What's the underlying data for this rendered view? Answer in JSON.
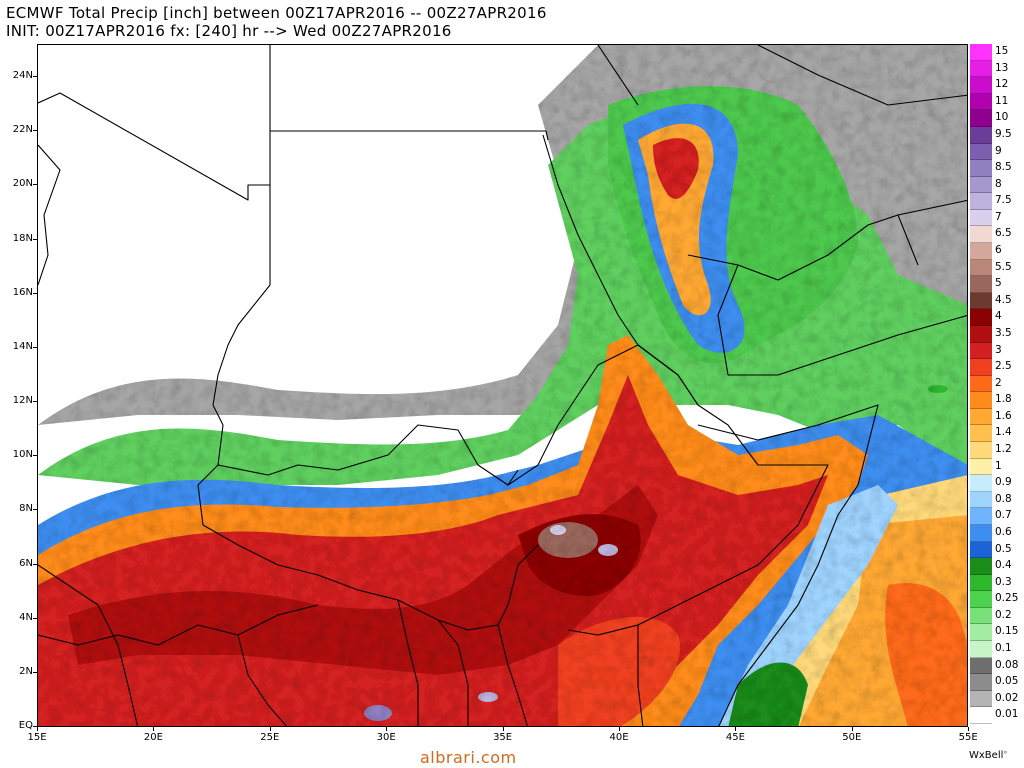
{
  "header": {
    "line1": "ECMWF Total Precip [inch] between 00Z17APR2016 -- 00Z27APR2016",
    "line2": "INIT: 00Z17APR2016 fx: [240] hr --> Wed 00Z27APR2016"
  },
  "map": {
    "lat_labels": [
      "24N",
      "22N",
      "20N",
      "18N",
      "16N",
      "14N",
      "12N",
      "10N",
      "8N",
      "6N",
      "4N",
      "2N",
      "EQ"
    ],
    "lon_labels": [
      "15E",
      "20E",
      "25E",
      "30E",
      "35E",
      "40E",
      "45E",
      "50E",
      "55E"
    ]
  },
  "colorbar": {
    "items": [
      {
        "label": "15",
        "color": "#ff33ff"
      },
      {
        "label": "13",
        "color": "#e61fe6"
      },
      {
        "label": "12",
        "color": "#cc0ccc"
      },
      {
        "label": "11",
        "color": "#b000b0"
      },
      {
        "label": "10",
        "color": "#8f008f"
      },
      {
        "label": "9.5",
        "color": "#6a3d9a"
      },
      {
        "label": "9",
        "color": "#7b5fb0"
      },
      {
        "label": "8.5",
        "color": "#9080c0"
      },
      {
        "label": "8",
        "color": "#a598cf"
      },
      {
        "label": "7.5",
        "color": "#bdb3de"
      },
      {
        "label": "7",
        "color": "#d8d0ec"
      },
      {
        "label": "6.5",
        "color": "#f2d8d0"
      },
      {
        "label": "6",
        "color": "#d4a79a"
      },
      {
        "label": "5.5",
        "color": "#b9877a"
      },
      {
        "label": "5",
        "color": "#9a675c"
      },
      {
        "label": "4.5",
        "color": "#6e3a2e"
      },
      {
        "label": "4",
        "color": "#8b0000"
      },
      {
        "label": "3.5",
        "color": "#b01010"
      },
      {
        "label": "3",
        "color": "#d42020"
      },
      {
        "label": "2.5",
        "color": "#f04020"
      },
      {
        "label": "2",
        "color": "#ff6a1a"
      },
      {
        "label": "1.8",
        "color": "#ff8c1a"
      },
      {
        "label": "1.6",
        "color": "#ffa833"
      },
      {
        "label": "1.4",
        "color": "#ffc04d"
      },
      {
        "label": "1.2",
        "color": "#ffd97a"
      },
      {
        "label": "1",
        "color": "#fff0a8"
      },
      {
        "label": "0.9",
        "color": "#c8ecff"
      },
      {
        "label": "0.8",
        "color": "#9fd4ff"
      },
      {
        "label": "0.7",
        "color": "#6fb4ff"
      },
      {
        "label": "0.6",
        "color": "#3d8ef0"
      },
      {
        "label": "0.5",
        "color": "#1d63d8"
      },
      {
        "label": "0.4",
        "color": "#1a8c1a"
      },
      {
        "label": "0.3",
        "color": "#2eb82e"
      },
      {
        "label": "0.25",
        "color": "#4dd24d"
      },
      {
        "label": "0.2",
        "color": "#77e077"
      },
      {
        "label": "0.15",
        "color": "#a3eca3"
      },
      {
        "label": "0.1",
        "color": "#c8f5c8"
      },
      {
        "label": "0.08",
        "color": "#6e6e6e"
      },
      {
        "label": "0.05",
        "color": "#8c8c8c"
      },
      {
        "label": "0.02",
        "color": "#b4b4b4"
      },
      {
        "label": "0.01",
        "color": "#ffffff"
      }
    ]
  },
  "watermark": "albrari.com",
  "brand": "WxBell",
  "brand_mark": "°"
}
